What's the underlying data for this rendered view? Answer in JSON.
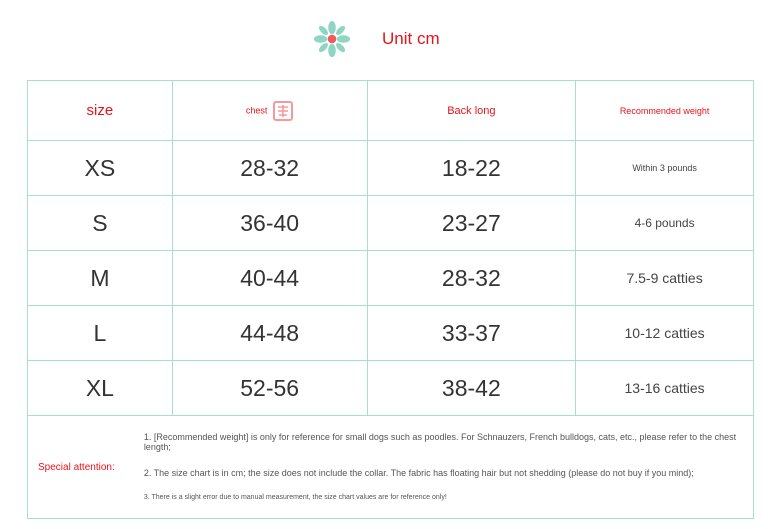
{
  "header": {
    "unit_label": "Unit cm",
    "icon": "flower-icon"
  },
  "table": {
    "columns": [
      "size",
      "chest",
      "Back long",
      "Recommended weight"
    ],
    "chest_icon": "chest-icon",
    "rows": [
      [
        "XS",
        "28-32",
        "18-22",
        "Within 3 pounds"
      ],
      [
        "S",
        "36-40",
        "23-27",
        "4-6 pounds"
      ],
      [
        "M",
        "40-44",
        "28-32",
        "7.5-9 catties"
      ],
      [
        "L",
        "44-48",
        "33-37",
        "10-12 catties"
      ],
      [
        "XL",
        "52-56",
        "38-42",
        "13-16 catties"
      ]
    ]
  },
  "notes": {
    "label": "Special attention:",
    "items": [
      "1. [Recommended weight] is only for reference for small dogs such as poodles. For Schnauzers, French bulldogs, cats, etc., please refer to the chest length;",
      "2. The size chart is in cm; the size does not include the collar. The fabric has floating hair but not shedding (please do not buy if you mind);",
      "3. There is a slight error due to manual measurement, the size chart values are for reference only!"
    ]
  },
  "colors": {
    "accent": "#e8141a",
    "border": "#a8e0d0",
    "flower": "#8fd5c4",
    "flower_center": "#f05a5a"
  }
}
